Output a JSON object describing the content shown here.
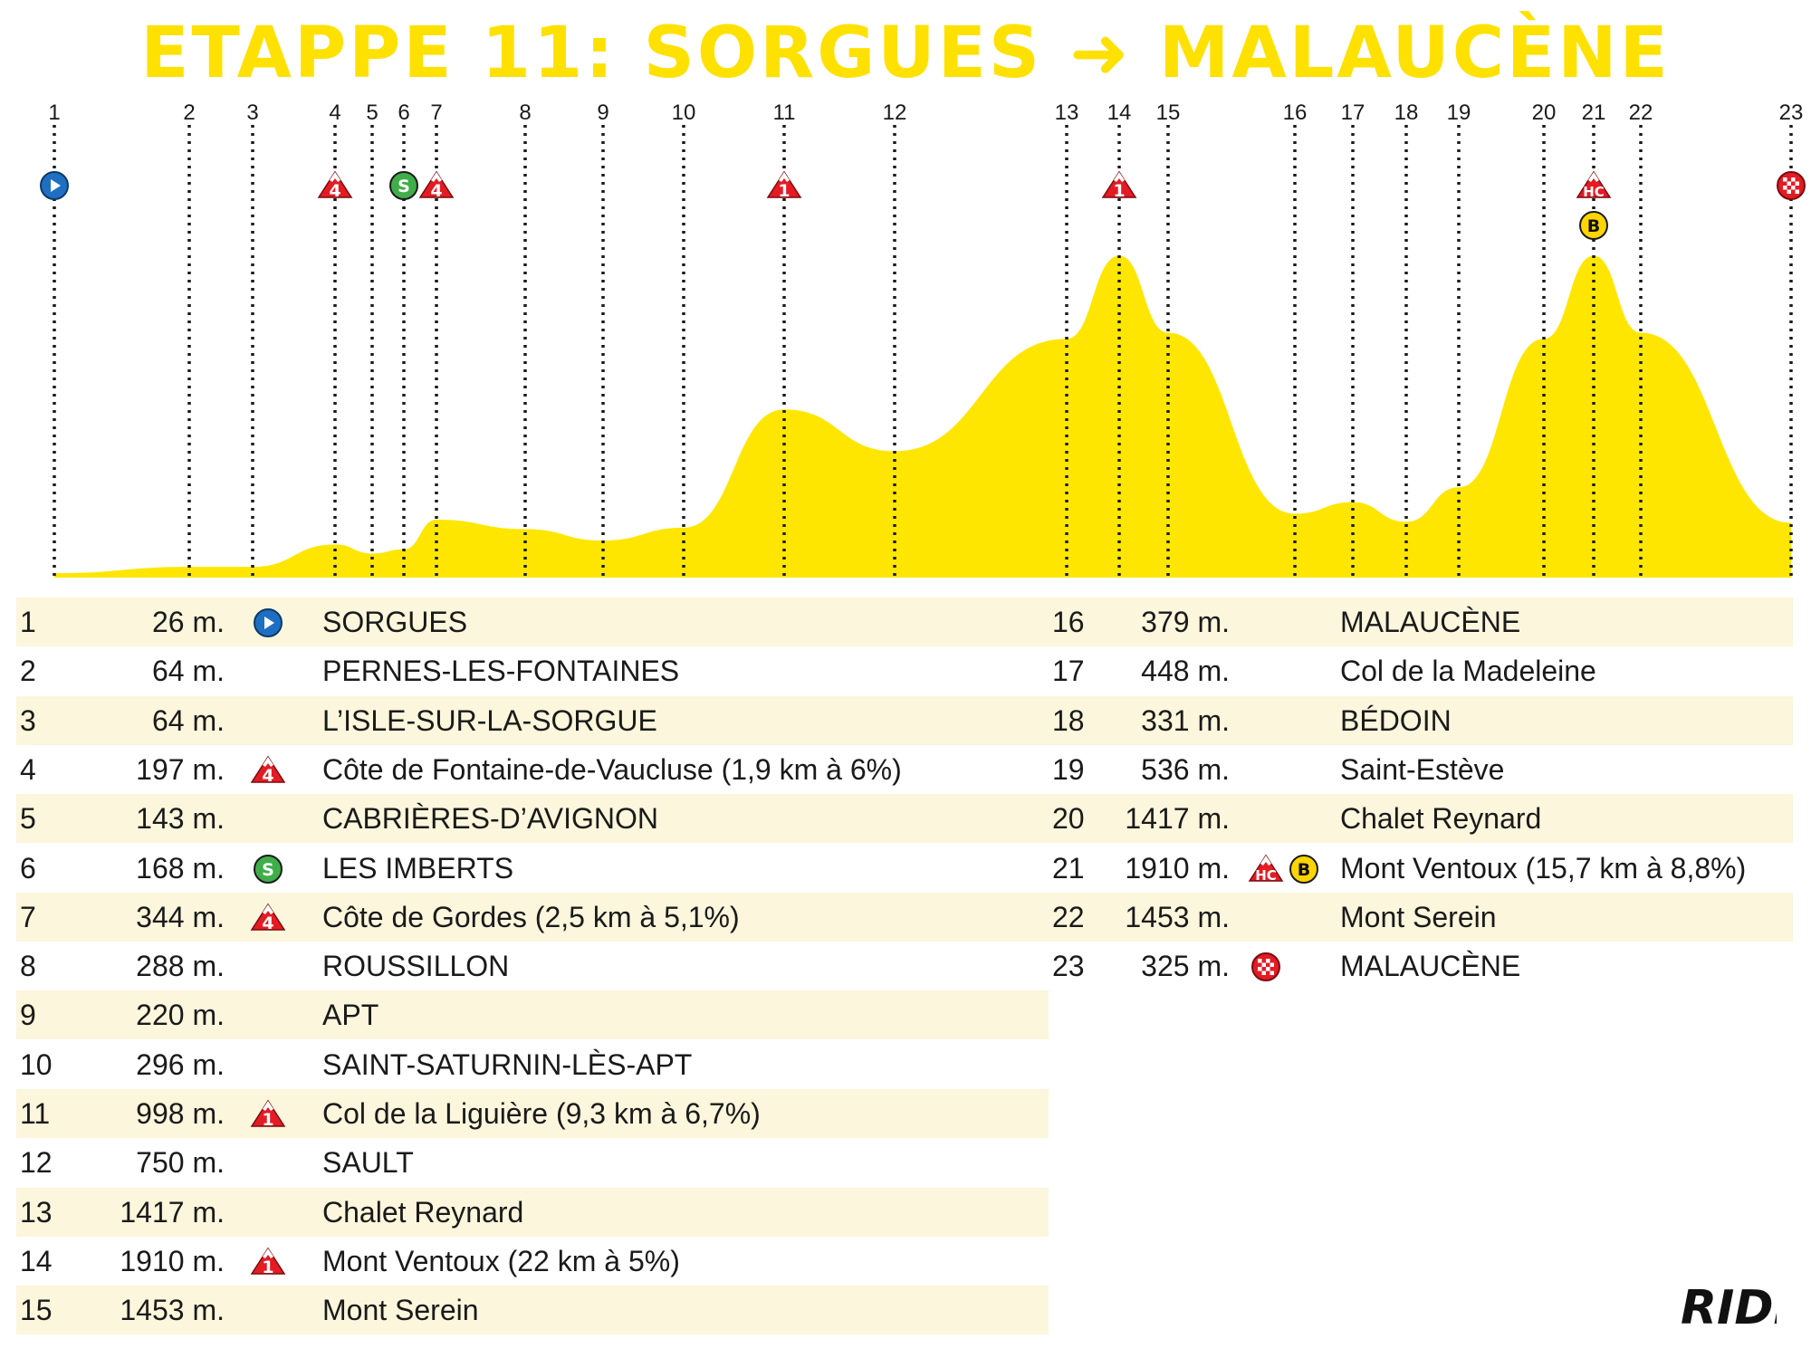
{
  "title": "ETAPPE 11: SORGUES ➜ MALAUCÈNE",
  "brand": "RIDE",
  "colors": {
    "profile_fill": "#ffe600",
    "title": "#ffe100",
    "row_shade": "#fbf6dc",
    "climb_red": "#e51b24",
    "sprint_green": "#3fae49",
    "start_blue": "#1e6fc2",
    "bonus_yellow": "#ffd500"
  },
  "chart_data": {
    "type": "area",
    "title": "ETAPPE 11: SORGUES ➜ MALAUCÈNE",
    "xlabel": "",
    "ylabel": "",
    "x_unit": "checkpoint",
    "y_unit": "m",
    "grid": false,
    "checkpoints": [
      {
        "n": "1",
        "alt": 26,
        "icons": [
          "start"
        ]
      },
      {
        "n": "2",
        "alt": 64,
        "icons": []
      },
      {
        "n": "3",
        "alt": 64,
        "icons": []
      },
      {
        "n": "4",
        "alt": 197,
        "icons": [
          "cat4"
        ]
      },
      {
        "n": "5",
        "alt": 143,
        "icons": []
      },
      {
        "n": "6",
        "alt": 168,
        "icons": [
          "sprint"
        ]
      },
      {
        "n": "7",
        "alt": 344,
        "icons": [
          "cat4"
        ]
      },
      {
        "n": "8",
        "alt": 288,
        "icons": []
      },
      {
        "n": "9",
        "alt": 220,
        "icons": []
      },
      {
        "n": "10",
        "alt": 296,
        "icons": []
      },
      {
        "n": "11",
        "alt": 998,
        "icons": [
          "cat1"
        ]
      },
      {
        "n": "12",
        "alt": 750,
        "icons": []
      },
      {
        "n": "13",
        "alt": 1417,
        "icons": []
      },
      {
        "n": "14",
        "alt": 1910,
        "icons": [
          "cat1"
        ]
      },
      {
        "n": "15",
        "alt": 1453,
        "icons": []
      },
      {
        "n": "16",
        "alt": 379,
        "icons": []
      },
      {
        "n": "17",
        "alt": 448,
        "icons": []
      },
      {
        "n": "18",
        "alt": 331,
        "icons": []
      },
      {
        "n": "19",
        "alt": 536,
        "icons": []
      },
      {
        "n": "20",
        "alt": 1417,
        "icons": []
      },
      {
        "n": "21",
        "alt": 1910,
        "icons": [
          "hc",
          "bonus"
        ]
      },
      {
        "n": "22",
        "alt": 1453,
        "icons": []
      },
      {
        "n": "23",
        "alt": 325,
        "icons": [
          "finish"
        ]
      }
    ]
  },
  "table": {
    "altitude_suffix": "m.",
    "left": [
      {
        "n": "1",
        "alt": "26 m.",
        "icons": [
          "start"
        ],
        "name": "SORGUES"
      },
      {
        "n": "2",
        "alt": "64 m.",
        "icons": [],
        "name": "PERNES-LES-FONTAINES"
      },
      {
        "n": "3",
        "alt": "64 m.",
        "icons": [],
        "name": "L’ISLE-SUR-LA-SORGUE"
      },
      {
        "n": "4",
        "alt": "197 m.",
        "icons": [
          "cat4"
        ],
        "name": "Côte de Fontaine-de-Vaucluse  (1,9 km à 6%)"
      },
      {
        "n": "5",
        "alt": "143 m.",
        "icons": [],
        "name": "CABRIÈRES-D’AVIGNON"
      },
      {
        "n": "6",
        "alt": "168 m.",
        "icons": [
          "sprint"
        ],
        "name": "LES IMBERTS"
      },
      {
        "n": "7",
        "alt": "344 m.",
        "icons": [
          "cat4"
        ],
        "name": "Côte de Gordes (2,5 km à 5,1%)"
      },
      {
        "n": "8",
        "alt": "288 m.",
        "icons": [],
        "name": "ROUSSILLON"
      },
      {
        "n": "9",
        "alt": "220 m.",
        "icons": [],
        "name": "APT"
      },
      {
        "n": "10",
        "alt": "296 m.",
        "icons": [],
        "name": "SAINT-SATURNIN-LÈS-APT"
      },
      {
        "n": "11",
        "alt": "998 m.",
        "icons": [
          "cat1"
        ],
        "name": "Col de la Liguière (9,3 km à 6,7%)"
      },
      {
        "n": "12",
        "alt": "750 m.",
        "icons": [],
        "name": "SAULT"
      },
      {
        "n": "13",
        "alt": "1417 m.",
        "icons": [],
        "name": "Chalet Reynard"
      },
      {
        "n": "14",
        "alt": "1910 m.",
        "icons": [
          "cat1"
        ],
        "name": "Mont Ventoux (22 km à 5%)"
      },
      {
        "n": "15",
        "alt": "1453 m.",
        "icons": [],
        "name": "Mont Serein"
      }
    ],
    "right": [
      {
        "n": "16",
        "alt": "379 m.",
        "icons": [],
        "name": "MALAUCÈNE"
      },
      {
        "n": "17",
        "alt": "448 m.",
        "icons": [],
        "name": "Col de la Madeleine"
      },
      {
        "n": "18",
        "alt": "331 m.",
        "icons": [],
        "name": "BÉDOIN"
      },
      {
        "n": "19",
        "alt": "536 m.",
        "icons": [],
        "name": "Saint-Estève"
      },
      {
        "n": "20",
        "alt": "1417 m.",
        "icons": [],
        "name": "Chalet Reynard"
      },
      {
        "n": "21",
        "alt": "1910 m.",
        "icons": [
          "hc",
          "bonus"
        ],
        "name": "Mont Ventoux (15,7 km à 8,8%)"
      },
      {
        "n": "22",
        "alt": "1453 m.",
        "icons": [],
        "name": "Mont Serein"
      },
      {
        "n": "23",
        "alt": "325 m.",
        "icons": [
          "finish"
        ],
        "name": "MALAUCÈNE"
      }
    ]
  },
  "icon_labels": {
    "cat4": "4",
    "cat1": "1",
    "hc": "HC",
    "sprint": "S",
    "bonus": "B"
  }
}
